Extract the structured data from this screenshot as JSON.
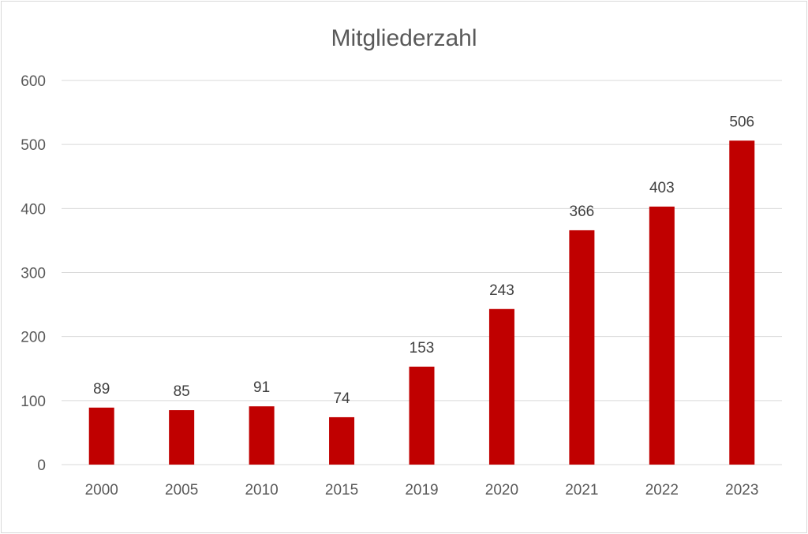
{
  "chart_data": {
    "type": "bar",
    "title": "Mitgliederzahl",
    "xlabel": "",
    "ylabel": "",
    "categories": [
      "2000",
      "2005",
      "2010",
      "2015",
      "2019",
      "2020",
      "2021",
      "2022",
      "2023"
    ],
    "values": [
      89,
      85,
      91,
      74,
      153,
      243,
      366,
      403,
      506
    ],
    "data_labels": [
      "89",
      "85",
      "91",
      "74",
      "153",
      "243",
      "366",
      "403",
      "506"
    ],
    "ylim": [
      0,
      600
    ],
    "yticks": [
      "0",
      "100",
      "200",
      "300",
      "400",
      "500",
      "600"
    ],
    "grid": true,
    "legend": "none",
    "bar_color": "#c00000"
  }
}
